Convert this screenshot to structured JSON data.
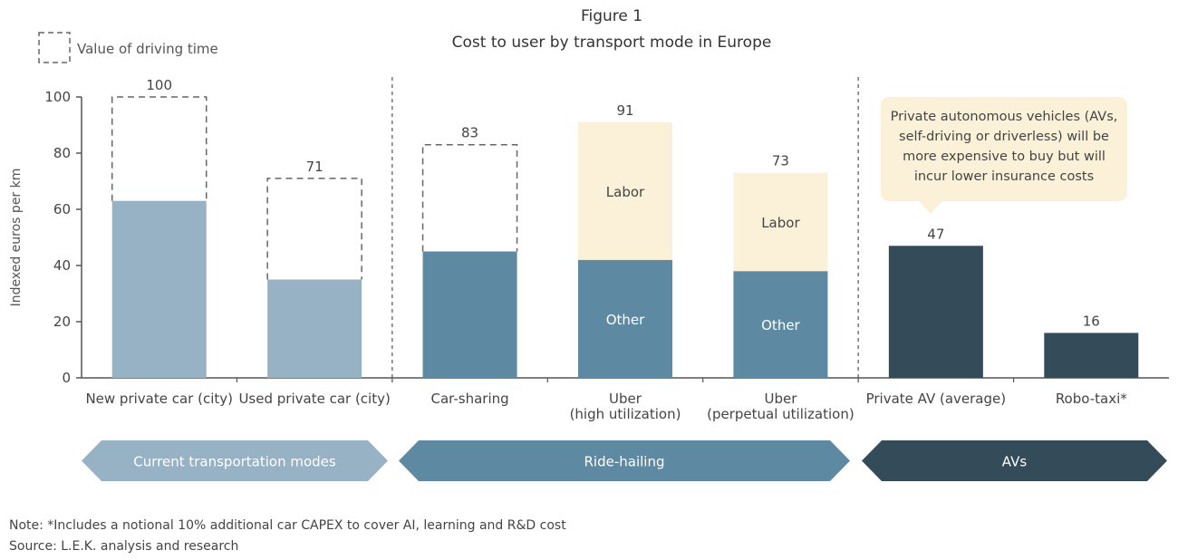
{
  "chart_data": {
    "type": "bar",
    "title": "Figure 1",
    "subtitle": "Cost to user by transport mode in Europe",
    "ylabel": "Indexed euros per km",
    "ylim": [
      0,
      100
    ],
    "yticks": [
      0,
      20,
      40,
      60,
      80,
      100
    ],
    "grid": false,
    "legend": {
      "label": "Value of driving time",
      "placement": "top-left"
    },
    "categories": [
      {
        "label": [
          "New private car (city)"
        ],
        "base": 63,
        "driving_time_total": 100,
        "total_label": "100",
        "color": "#97b2c4"
      },
      {
        "label": [
          "Used private car (city)"
        ],
        "base": 35,
        "driving_time_total": 71,
        "total_label": "71",
        "color": "#97b2c4"
      },
      {
        "label": [
          "Car-sharing"
        ],
        "base": 45,
        "driving_time_total": 83,
        "total_label": "83",
        "color": "#5e89a2"
      },
      {
        "label": [
          "Uber",
          "(high utilization)"
        ],
        "base": 42,
        "labor_total": 91,
        "total_label": "91",
        "color": "#5e89a2",
        "base_label": "Other",
        "labor_label": "Labor"
      },
      {
        "label": [
          "Uber",
          "(perpetual utilization)"
        ],
        "base": 38,
        "labor_total": 73,
        "total_label": "73",
        "color": "#5e89a2",
        "base_label": "Other",
        "labor_label": "Labor"
      },
      {
        "label": [
          "Private AV (average)"
        ],
        "base": 47,
        "total_label": "47",
        "color": "#344b5a"
      },
      {
        "label": [
          "Robo-taxi*"
        ],
        "base": 16,
        "total_label": "16",
        "color": "#344b5a"
      }
    ],
    "labor_color": "#fbf1d8",
    "groups": [
      {
        "label": "Current transportation modes",
        "color": "#97b2c4"
      },
      {
        "label": "Ride-hailing",
        "color": "#5e89a2"
      },
      {
        "label": "AVs",
        "color": "#344b5a"
      }
    ],
    "callout": [
      "Private autonomous vehicles (AVs,",
      "self-driving or driverless) will be",
      "more expensive to buy but will",
      "incur lower insurance costs"
    ],
    "callout_color": "#fbf1d8"
  },
  "notes": {
    "note": "Note: *Includes a notional 10% additional car CAPEX to cover AI, learning and R&D cost",
    "source": "Source: L.E.K. analysis and research"
  }
}
